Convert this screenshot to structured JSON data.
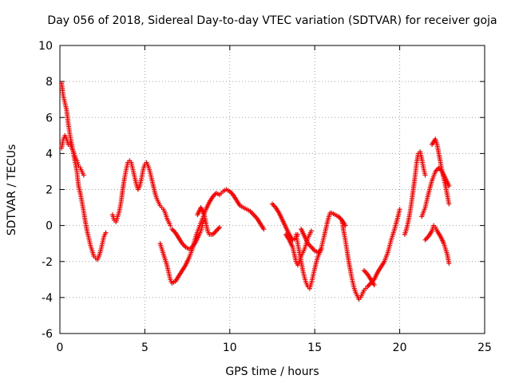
{
  "chart_data": {
    "type": "scatter",
    "title": "Day 056 of 2018, Sidereal Day-to-day VTEC variation (SDTVAR) for receiver goja",
    "xlabel": "GPS time / hours",
    "ylabel": "SDTVAR / TECUs",
    "xlim": [
      0,
      25
    ],
    "ylim": [
      -6,
      10
    ],
    "xticks": [
      0,
      5,
      10,
      15,
      20,
      25
    ],
    "yticks": [
      -6,
      -4,
      -2,
      0,
      2,
      4,
      6,
      8,
      10
    ],
    "grid": true,
    "marker": "+",
    "color": "#ff0000",
    "series": [
      {
        "name": "SDTVAR",
        "segments": [
          [
            [
              0.1,
              7.9
            ],
            [
              0.2,
              7.2
            ],
            [
              0.3,
              6.8
            ],
            [
              0.4,
              6.4
            ],
            [
              0.5,
              5.6
            ],
            [
              0.6,
              5.0
            ],
            [
              0.7,
              4.5
            ],
            [
              0.8,
              4.0
            ],
            [
              0.9,
              3.5
            ],
            [
              1.0,
              3.0
            ],
            [
              1.1,
              2.2
            ],
            [
              1.2,
              1.8
            ],
            [
              1.3,
              1.3
            ],
            [
              1.4,
              0.8
            ],
            [
              1.5,
              0.2
            ],
            [
              1.6,
              -0.3
            ],
            [
              1.7,
              -0.7
            ],
            [
              1.8,
              -1.1
            ],
            [
              1.9,
              -1.4
            ],
            [
              2.0,
              -1.7
            ],
            [
              2.1,
              -1.8
            ],
            [
              2.2,
              -1.9
            ],
            [
              2.3,
              -1.7
            ],
            [
              2.4,
              -1.4
            ],
            [
              2.5,
              -1.0
            ],
            [
              2.6,
              -0.6
            ],
            [
              2.7,
              -0.4
            ]
          ],
          [
            [
              0.1,
              4.3
            ],
            [
              0.2,
              4.8
            ],
            [
              0.3,
              5.0
            ],
            [
              0.4,
              4.8
            ],
            [
              0.5,
              4.5
            ],
            [
              0.6,
              4.6
            ],
            [
              0.7,
              4.3
            ],
            [
              0.8,
              4.1
            ],
            [
              0.9,
              3.8
            ],
            [
              1.0,
              3.6
            ],
            [
              1.1,
              3.3
            ],
            [
              1.2,
              3.2
            ],
            [
              1.3,
              3.0
            ],
            [
              1.4,
              2.8
            ]
          ],
          [
            [
              3.1,
              0.6
            ],
            [
              3.2,
              0.3
            ],
            [
              3.3,
              0.2
            ],
            [
              3.4,
              0.5
            ],
            [
              3.5,
              0.8
            ],
            [
              3.6,
              1.3
            ],
            [
              3.7,
              2.0
            ],
            [
              3.8,
              2.6
            ],
            [
              3.9,
              3.1
            ],
            [
              4.0,
              3.5
            ],
            [
              4.1,
              3.6
            ],
            [
              4.2,
              3.5
            ],
            [
              4.3,
              3.1
            ],
            [
              4.4,
              2.7
            ],
            [
              4.5,
              2.3
            ],
            [
              4.6,
              2.0
            ],
            [
              4.7,
              2.2
            ],
            [
              4.8,
              2.6
            ],
            [
              4.9,
              3.1
            ],
            [
              5.0,
              3.4
            ],
            [
              5.1,
              3.5
            ],
            [
              5.2,
              3.3
            ],
            [
              5.3,
              3.0
            ],
            [
              5.4,
              2.6
            ],
            [
              5.5,
              2.2
            ],
            [
              5.6,
              1.8
            ],
            [
              5.7,
              1.5
            ],
            [
              5.8,
              1.3
            ],
            [
              5.9,
              1.1
            ],
            [
              6.0,
              1.0
            ],
            [
              6.1,
              0.9
            ],
            [
              6.2,
              0.7
            ],
            [
              6.3,
              0.4
            ],
            [
              6.4,
              0.2
            ],
            [
              6.5,
              0.0
            ]
          ],
          [
            [
              5.9,
              -1.0
            ],
            [
              6.0,
              -1.3
            ],
            [
              6.1,
              -1.6
            ],
            [
              6.2,
              -1.9
            ],
            [
              6.3,
              -2.2
            ],
            [
              6.4,
              -2.6
            ],
            [
              6.5,
              -3.0
            ],
            [
              6.6,
              -3.2
            ],
            [
              6.8,
              -3.1
            ],
            [
              7.0,
              -2.8
            ],
            [
              7.2,
              -2.5
            ],
            [
              7.4,
              -2.2
            ],
            [
              7.6,
              -1.8
            ],
            [
              7.8,
              -1.3
            ],
            [
              8.0,
              -0.6
            ],
            [
              8.2,
              -0.1
            ],
            [
              8.4,
              0.4
            ],
            [
              8.6,
              0.9
            ],
            [
              8.8,
              1.3
            ],
            [
              9.0,
              1.6
            ],
            [
              9.2,
              1.8
            ],
            [
              9.4,
              1.7
            ],
            [
              9.5,
              1.8
            ]
          ],
          [
            [
              6.6,
              -0.2
            ],
            [
              6.8,
              -0.4
            ],
            [
              7.0,
              -0.7
            ],
            [
              7.2,
              -1.0
            ],
            [
              7.4,
              -1.2
            ],
            [
              7.6,
              -1.3
            ],
            [
              7.8,
              -1.2
            ],
            [
              8.0,
              -0.9
            ],
            [
              8.2,
              -0.5
            ],
            [
              8.3,
              -0.3
            ],
            [
              8.4,
              0.1
            ],
            [
              8.5,
              0.3
            ]
          ],
          [
            [
              8.1,
              0.6
            ],
            [
              8.3,
              1.0
            ],
            [
              8.5,
              0.6
            ],
            [
              8.6,
              0.1
            ],
            [
              8.7,
              -0.3
            ],
            [
              8.8,
              -0.5
            ],
            [
              9.0,
              -0.5
            ],
            [
              9.2,
              -0.3
            ],
            [
              9.4,
              -0.1
            ]
          ],
          [
            [
              9.6,
              1.9
            ],
            [
              9.8,
              2.0
            ],
            [
              10.0,
              1.9
            ],
            [
              10.2,
              1.7
            ],
            [
              10.4,
              1.4
            ],
            [
              10.6,
              1.1
            ],
            [
              10.8,
              1.0
            ],
            [
              11.0,
              0.9
            ],
            [
              11.2,
              0.8
            ],
            [
              11.4,
              0.6
            ],
            [
              11.6,
              0.4
            ],
            [
              11.8,
              0.1
            ],
            [
              12.0,
              -0.2
            ]
          ],
          [
            [
              12.5,
              1.2
            ],
            [
              12.7,
              1.0
            ],
            [
              12.9,
              0.7
            ],
            [
              13.1,
              0.3
            ],
            [
              13.3,
              -0.1
            ],
            [
              13.5,
              -0.5
            ],
            [
              13.7,
              -0.8
            ],
            [
              13.9,
              -0.7
            ],
            [
              14.0,
              -0.5
            ]
          ],
          [
            [
              13.3,
              -0.5
            ],
            [
              13.5,
              -0.8
            ],
            [
              13.7,
              -1.2
            ],
            [
              13.8,
              -1.6
            ],
            [
              13.9,
              -2.0
            ],
            [
              14.0,
              -2.2
            ],
            [
              14.1,
              -2.0
            ],
            [
              14.2,
              -1.7
            ],
            [
              14.3,
              -1.5
            ],
            [
              14.4,
              -1.3
            ],
            [
              14.5,
              -1.0
            ],
            [
              14.6,
              -0.7
            ],
            [
              14.7,
              -0.5
            ],
            [
              14.8,
              -0.3
            ]
          ],
          [
            [
              13.9,
              -0.5
            ],
            [
              14.0,
              -1.0
            ],
            [
              14.1,
              -1.5
            ],
            [
              14.2,
              -2.0
            ],
            [
              14.3,
              -2.5
            ],
            [
              14.4,
              -2.9
            ],
            [
              14.5,
              -3.2
            ],
            [
              14.6,
              -3.4
            ],
            [
              14.7,
              -3.5
            ],
            [
              14.8,
              -3.2
            ],
            [
              14.9,
              -2.8
            ],
            [
              15.0,
              -2.4
            ],
            [
              15.1,
              -2.0
            ],
            [
              15.2,
              -1.7
            ],
            [
              15.3,
              -1.5
            ],
            [
              15.4,
              -1.2
            ],
            [
              15.5,
              -0.8
            ],
            [
              15.6,
              -0.4
            ],
            [
              15.7,
              0.0
            ],
            [
              15.8,
              0.4
            ],
            [
              15.9,
              0.7
            ],
            [
              16.0,
              0.7
            ],
            [
              16.2,
              0.6
            ],
            [
              16.4,
              0.5
            ],
            [
              16.6,
              0.3
            ],
            [
              16.8,
              0.0
            ]
          ],
          [
            [
              14.2,
              -0.2
            ],
            [
              14.4,
              -0.6
            ],
            [
              14.6,
              -1.0
            ],
            [
              14.8,
              -1.2
            ],
            [
              15.0,
              -1.4
            ],
            [
              15.2,
              -1.5
            ],
            [
              15.4,
              -1.3
            ]
          ],
          [
            [
              16.6,
              0.3
            ],
            [
              16.7,
              -0.3
            ],
            [
              16.8,
              -0.8
            ],
            [
              16.9,
              -1.4
            ],
            [
              17.0,
              -2.0
            ],
            [
              17.1,
              -2.5
            ],
            [
              17.2,
              -3.0
            ],
            [
              17.3,
              -3.4
            ],
            [
              17.4,
              -3.7
            ],
            [
              17.5,
              -3.9
            ],
            [
              17.6,
              -4.1
            ],
            [
              17.7,
              -4.0
            ],
            [
              17.8,
              -3.8
            ],
            [
              17.9,
              -3.6
            ],
            [
              18.0,
              -3.5
            ],
            [
              18.1,
              -3.4
            ],
            [
              18.3,
              -3.2
            ],
            [
              18.5,
              -3.0
            ],
            [
              18.7,
              -2.6
            ],
            [
              18.9,
              -2.3
            ],
            [
              19.1,
              -2.0
            ],
            [
              19.3,
              -1.5
            ],
            [
              19.5,
              -0.8
            ],
            [
              19.7,
              -0.2
            ],
            [
              19.9,
              0.5
            ],
            [
              20.0,
              0.9
            ]
          ],
          [
            [
              17.9,
              -2.5
            ],
            [
              18.1,
              -2.7
            ],
            [
              18.3,
              -3.0
            ],
            [
              18.5,
              -3.3
            ]
          ],
          [
            [
              20.3,
              -0.5
            ],
            [
              20.4,
              -0.2
            ],
            [
              20.5,
              0.2
            ],
            [
              20.6,
              0.7
            ],
            [
              20.7,
              1.3
            ],
            [
              20.8,
              2.0
            ],
            [
              20.9,
              2.7
            ],
            [
              21.0,
              3.5
            ],
            [
              21.1,
              4.0
            ],
            [
              21.2,
              4.1
            ],
            [
              21.3,
              3.7
            ],
            [
              21.4,
              3.2
            ],
            [
              21.5,
              2.8
            ]
          ],
          [
            [
              21.5,
              -0.8
            ],
            [
              21.7,
              -0.6
            ],
            [
              21.9,
              -0.3
            ],
            [
              22.0,
              0.0
            ],
            [
              22.1,
              -0.1
            ],
            [
              22.2,
              -0.3
            ],
            [
              22.4,
              -0.6
            ],
            [
              22.6,
              -1.0
            ],
            [
              22.8,
              -1.6
            ],
            [
              22.9,
              -2.1
            ]
          ],
          [
            [
              21.9,
              4.5
            ],
            [
              22.1,
              4.8
            ],
            [
              22.2,
              4.5
            ],
            [
              22.3,
              4.0
            ],
            [
              22.4,
              3.5
            ],
            [
              22.5,
              3.0
            ],
            [
              22.6,
              2.6
            ],
            [
              22.7,
              2.2
            ],
            [
              22.8,
              1.7
            ],
            [
              22.9,
              1.2
            ]
          ],
          [
            [
              21.3,
              0.5
            ],
            [
              21.5,
              1.0
            ],
            [
              21.7,
              1.8
            ],
            [
              21.9,
              2.5
            ],
            [
              22.1,
              3.0
            ],
            [
              22.3,
              3.2
            ],
            [
              22.5,
              3.0
            ],
            [
              22.7,
              2.6
            ],
            [
              22.9,
              2.2
            ]
          ]
        ]
      }
    ]
  }
}
